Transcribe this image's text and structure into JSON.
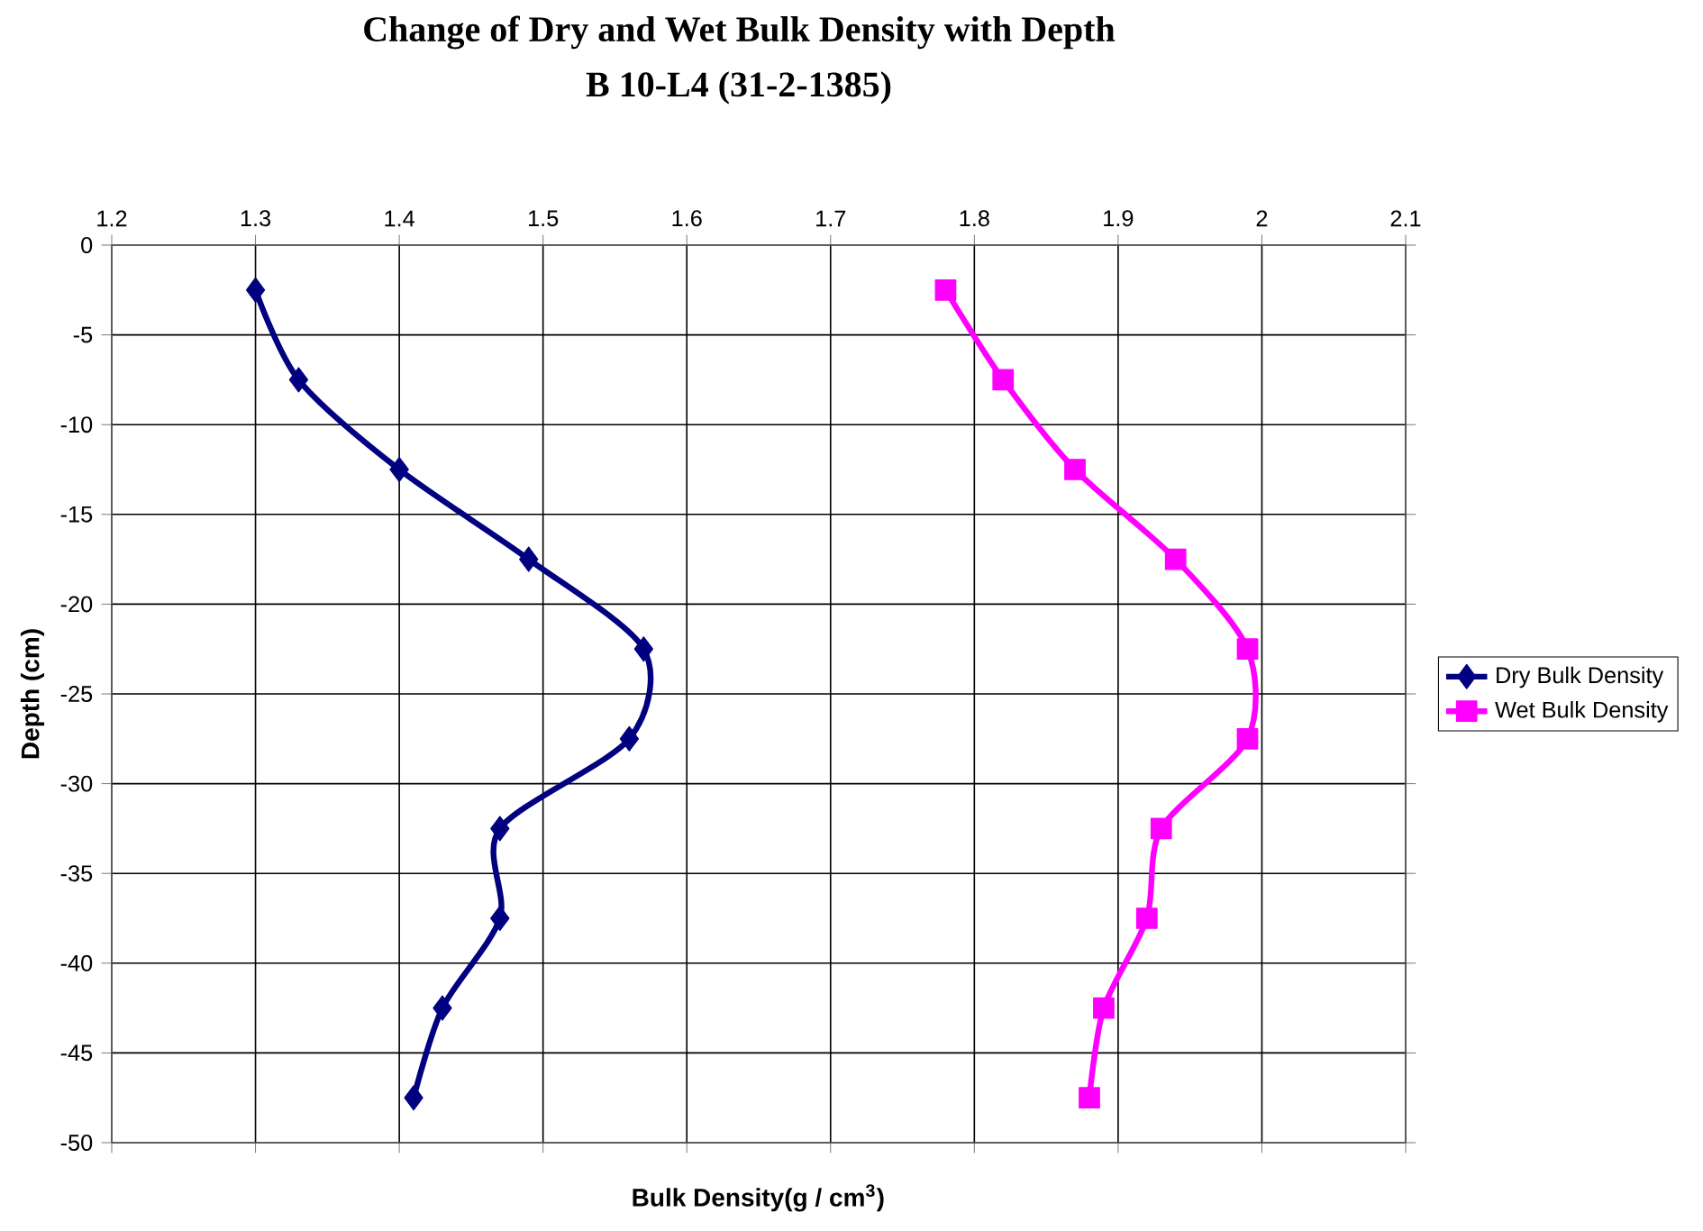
{
  "chart_data": {
    "type": "line",
    "title": "Change  of Dry and Wet  Bulk Density with Depth",
    "subtitle": "B 10-L4 (31-2-1385)",
    "xlabel": "Bulk Density(g / cm$^{3}$)",
    "ylabel": "Depth (cm)",
    "series": [
      {
        "name": "Dry Bulk Density",
        "color": "#000080",
        "marker": "diamond",
        "x": [
          1.3,
          1.33,
          1.4,
          1.49,
          1.57,
          1.56,
          1.47,
          1.47,
          1.43,
          1.41
        ],
        "values": [
          -2.5,
          -7.5,
          -12.5,
          -17.5,
          -22.5,
          -27.5,
          -32.5,
          -37.5,
          -42.5,
          -47.5
        ]
      },
      {
        "name": "Wet Bulk Density",
        "color": "#ff00ff",
        "marker": "square",
        "x": [
          1.78,
          1.82,
          1.87,
          1.94,
          1.99,
          1.99,
          1.93,
          1.92,
          1.89,
          1.88
        ],
        "values": [
          -2.5,
          -7.5,
          -12.5,
          -17.5,
          -22.5,
          -27.5,
          -32.5,
          -37.5,
          -42.5,
          -47.5
        ]
      }
    ],
    "xlim": [
      1.2,
      2.1
    ],
    "xticks": [
      1.2,
      1.3,
      1.4,
      1.5,
      1.6,
      1.7,
      1.8,
      1.9,
      2,
      2.1
    ],
    "ylim": [
      -50,
      0
    ],
    "yticks": [
      0,
      -5,
      -10,
      -15,
      -20,
      -25,
      -30,
      -35,
      -40,
      -45,
      -50
    ],
    "grid": true,
    "legend": "right",
    "line_style": "solid"
  }
}
